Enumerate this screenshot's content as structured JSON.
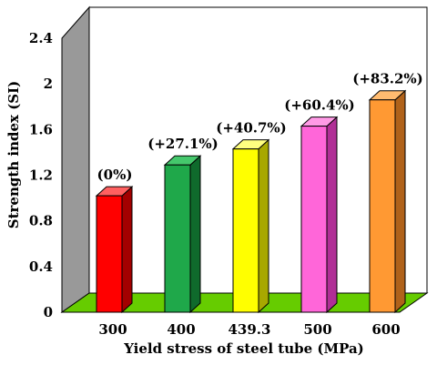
{
  "chart_data": {
    "type": "bar",
    "title": "",
    "xlabel": "Yield stress of steel tube (MPa)",
    "ylabel": "Strength index (SI)",
    "ylim": [
      0,
      2.4
    ],
    "yticks": [
      "0",
      "0.4",
      "0.8",
      "1.2",
      "1.6",
      "2",
      "2.4"
    ],
    "categories": [
      "300",
      "400",
      "439.3",
      "500",
      "600"
    ],
    "values": [
      1.02,
      1.29,
      1.43,
      1.63,
      1.86
    ],
    "data_labels": [
      "(0%)",
      "(+27.1%)",
      "(+40.7%)",
      "(+60.4%)",
      "(+83.2%)"
    ],
    "bar_colors": [
      "#ff0000",
      "#1fa84a",
      "#ffff00",
      "#ff66d9",
      "#ff9933"
    ],
    "bar_side_colors": [
      "#a30000",
      "#0f6a2c",
      "#a8a800",
      "#b02f96",
      "#b0621a"
    ],
    "bar_top_colors": [
      "#ff6060",
      "#45c86c",
      "#ffff80",
      "#ff9ae6",
      "#ffbb70"
    ],
    "back_wall_color": "#ffffff",
    "side_wall_color": "#999999",
    "floor_color": "#66cc00",
    "grid": false,
    "style": "3d"
  }
}
